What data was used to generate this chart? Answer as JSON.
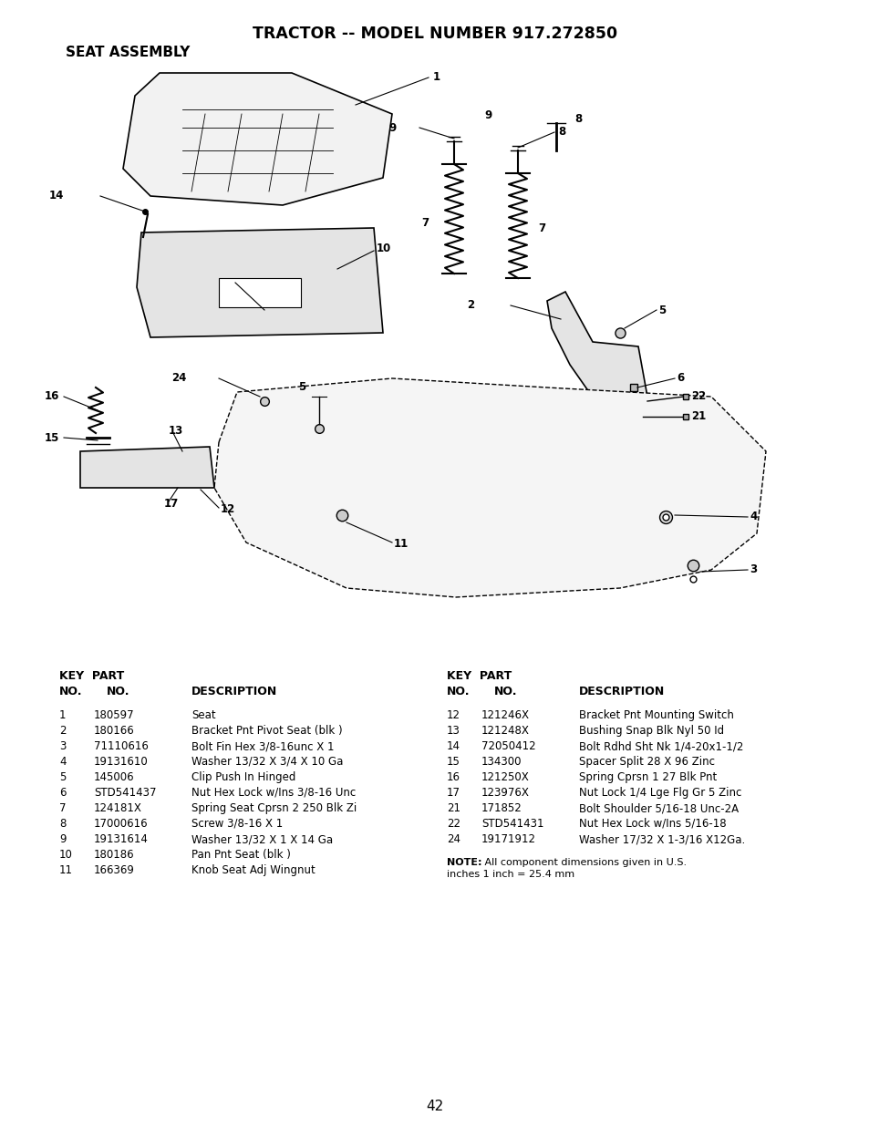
{
  "title": "TRACTOR -- MODEL NUMBER 917.272850",
  "subtitle": "SEAT ASSEMBLY",
  "page_number": "42",
  "background_color": "#ffffff",
  "text_color": "#000000",
  "table_left_rows": [
    [
      "1",
      "180597",
      "Seat"
    ],
    [
      "2",
      "180166",
      "Bracket Pnt Pivot Seat (blk )"
    ],
    [
      "3",
      "71110616",
      "Bolt Fin Hex 3/8-16unc X 1"
    ],
    [
      "4",
      "19131610",
      "Washer 13/32 X 3/4 X 10 Ga"
    ],
    [
      "5",
      "145006",
      "Clip Push In Hinged"
    ],
    [
      "6",
      "STD541437",
      "Nut Hex Lock w/Ins 3/8-16 Unc"
    ],
    [
      "7",
      "124181X",
      "Spring Seat Cprsn 2 250 Blk Zi"
    ],
    [
      "8",
      "17000616",
      "Screw 3/8-16 X 1"
    ],
    [
      "9",
      "19131614",
      "Washer 13/32 X 1 X 14 Ga"
    ],
    [
      "10",
      "180186",
      "Pan Pnt Seat (blk )"
    ],
    [
      "11",
      "166369",
      "Knob Seat Adj Wingnut"
    ]
  ],
  "table_right_rows": [
    [
      "12",
      "121246X",
      "Bracket Pnt Mounting Switch"
    ],
    [
      "13",
      "121248X",
      "Bushing Snap Blk Nyl 50 Id"
    ],
    [
      "14",
      "72050412",
      "Bolt Rdhd Sht Nk 1/4-20x1-1/2"
    ],
    [
      "15",
      "134300",
      "Spacer Split 28 X 96 Zinc"
    ],
    [
      "16",
      "121250X",
      "Spring Cprsn 1 27 Blk Pnt"
    ],
    [
      "17",
      "123976X",
      "Nut Lock 1/4 Lge Flg Gr 5 Zinc"
    ],
    [
      "21",
      "171852",
      "Bolt Shoulder 5/16-18 Unc-2A"
    ],
    [
      "22",
      "STD541431",
      "Nut Hex Lock w/Ins 5/16-18"
    ],
    [
      "24",
      "19171912",
      "Washer 17/32 X 1-3/16 X12Ga."
    ]
  ],
  "note_bold": "NOTE:",
  "note_normal": " All component dimensions given in U.S.\ninches 1 inch = 25.4 mm"
}
